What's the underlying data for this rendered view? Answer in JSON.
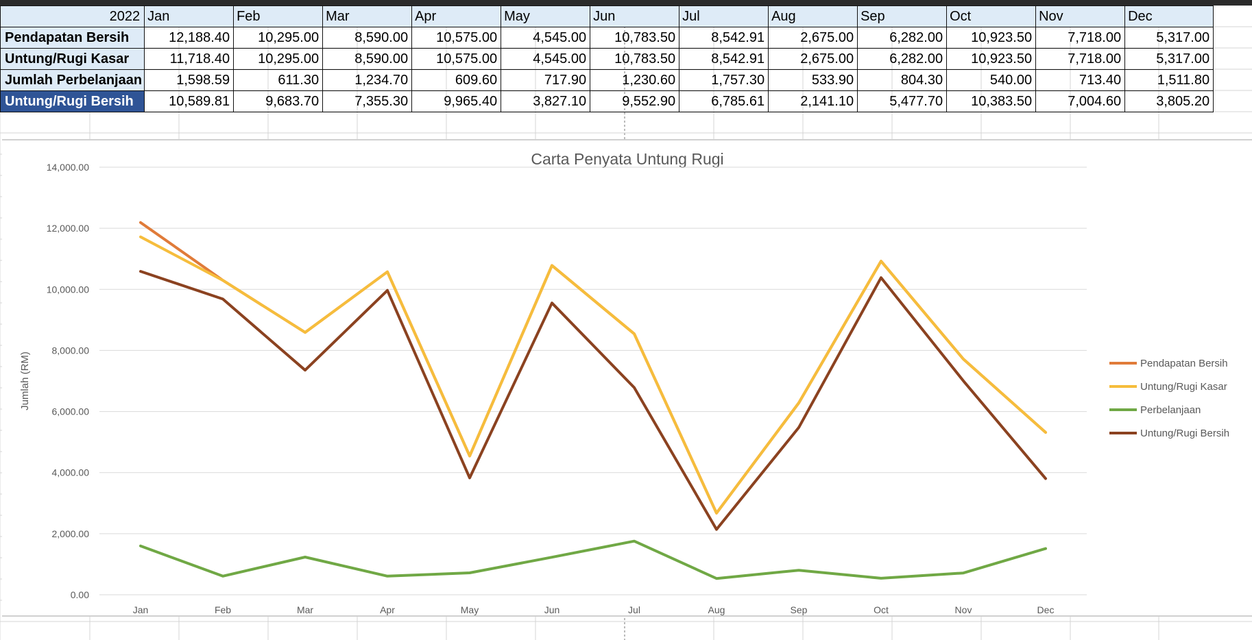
{
  "table": {
    "year": "2022",
    "months": [
      "Jan",
      "Feb",
      "Mar",
      "Apr",
      "May",
      "Jun",
      "Jul",
      "Aug",
      "Sep",
      "Oct",
      "Nov",
      "Dec"
    ],
    "rows": [
      {
        "label": "Pendapatan Bersih",
        "values": [
          "12,188.40",
          "10,295.00",
          "8,590.00",
          "10,575.00",
          "4,545.00",
          "10,783.50",
          "8,542.91",
          "2,675.00",
          "6,282.00",
          "10,923.50",
          "7,718.00",
          "5,317.00"
        ]
      },
      {
        "label": "Untung/Rugi Kasar",
        "values": [
          "11,718.40",
          "10,295.00",
          "8,590.00",
          "10,575.00",
          "4,545.00",
          "10,783.50",
          "8,542.91",
          "2,675.00",
          "6,282.00",
          "10,923.50",
          "7,718.00",
          "5,317.00"
        ]
      },
      {
        "label": "Jumlah Perbelanjaan",
        "values": [
          "1,598.59",
          "611.30",
          "1,234.70",
          "609.60",
          "717.90",
          "1,230.60",
          "1,757.30",
          "533.90",
          "804.30",
          "540.00",
          "713.40",
          "1,511.80"
        ]
      },
      {
        "label": "Untung/Rugi Bersih",
        "values": [
          "10,589.81",
          "9,683.70",
          "7,355.30",
          "9,965.40",
          "3,827.10",
          "9,552.90",
          "6,785.61",
          "2,141.10",
          "5,477.70",
          "10,383.50",
          "7,004.60",
          "3,805.20"
        ]
      }
    ]
  },
  "chart_data": {
    "type": "line",
    "title": "Carta Penyata Untung Rugi",
    "xlabel": "",
    "ylabel": "Jumlah (RM)",
    "ylim": [
      0,
      14000
    ],
    "yticks": [
      0,
      2000,
      4000,
      6000,
      8000,
      10000,
      12000,
      14000
    ],
    "ytick_labels": [
      "0.00",
      "2,000.00",
      "4,000.00",
      "6,000.00",
      "8,000.00",
      "10,000.00",
      "12,000.00",
      "14,000.00"
    ],
    "categories": [
      "Jan",
      "Feb",
      "Mar",
      "Apr",
      "May",
      "Jun",
      "Jul",
      "Aug",
      "Sep",
      "Oct",
      "Nov",
      "Dec"
    ],
    "grid": true,
    "legend_position": "right",
    "series": [
      {
        "name": "Pendapatan Bersih",
        "color": "#e07b39",
        "values": [
          12188.4,
          10295.0,
          8590.0,
          10575.0,
          4545.0,
          10783.5,
          8542.91,
          2675.0,
          6282.0,
          10923.5,
          7718.0,
          5317.0
        ]
      },
      {
        "name": "Untung/Rugi Kasar",
        "color": "#f6bd3c",
        "values": [
          11718.4,
          10295.0,
          8590.0,
          10575.0,
          4545.0,
          10783.5,
          8542.91,
          2675.0,
          6282.0,
          10923.5,
          7718.0,
          5317.0
        ]
      },
      {
        "name": "Perbelanjaan",
        "color": "#70a845",
        "values": [
          1598.59,
          611.3,
          1234.7,
          609.6,
          717.9,
          1230.6,
          1757.3,
          533.9,
          804.3,
          540.0,
          713.4,
          1511.8
        ]
      },
      {
        "name": "Untung/Rugi Bersih",
        "color": "#8b4220",
        "values": [
          10589.81,
          9683.7,
          7355.3,
          9965.4,
          3827.1,
          9552.9,
          6785.61,
          2141.1,
          5477.7,
          10383.5,
          7004.6,
          3805.2
        ]
      }
    ]
  }
}
